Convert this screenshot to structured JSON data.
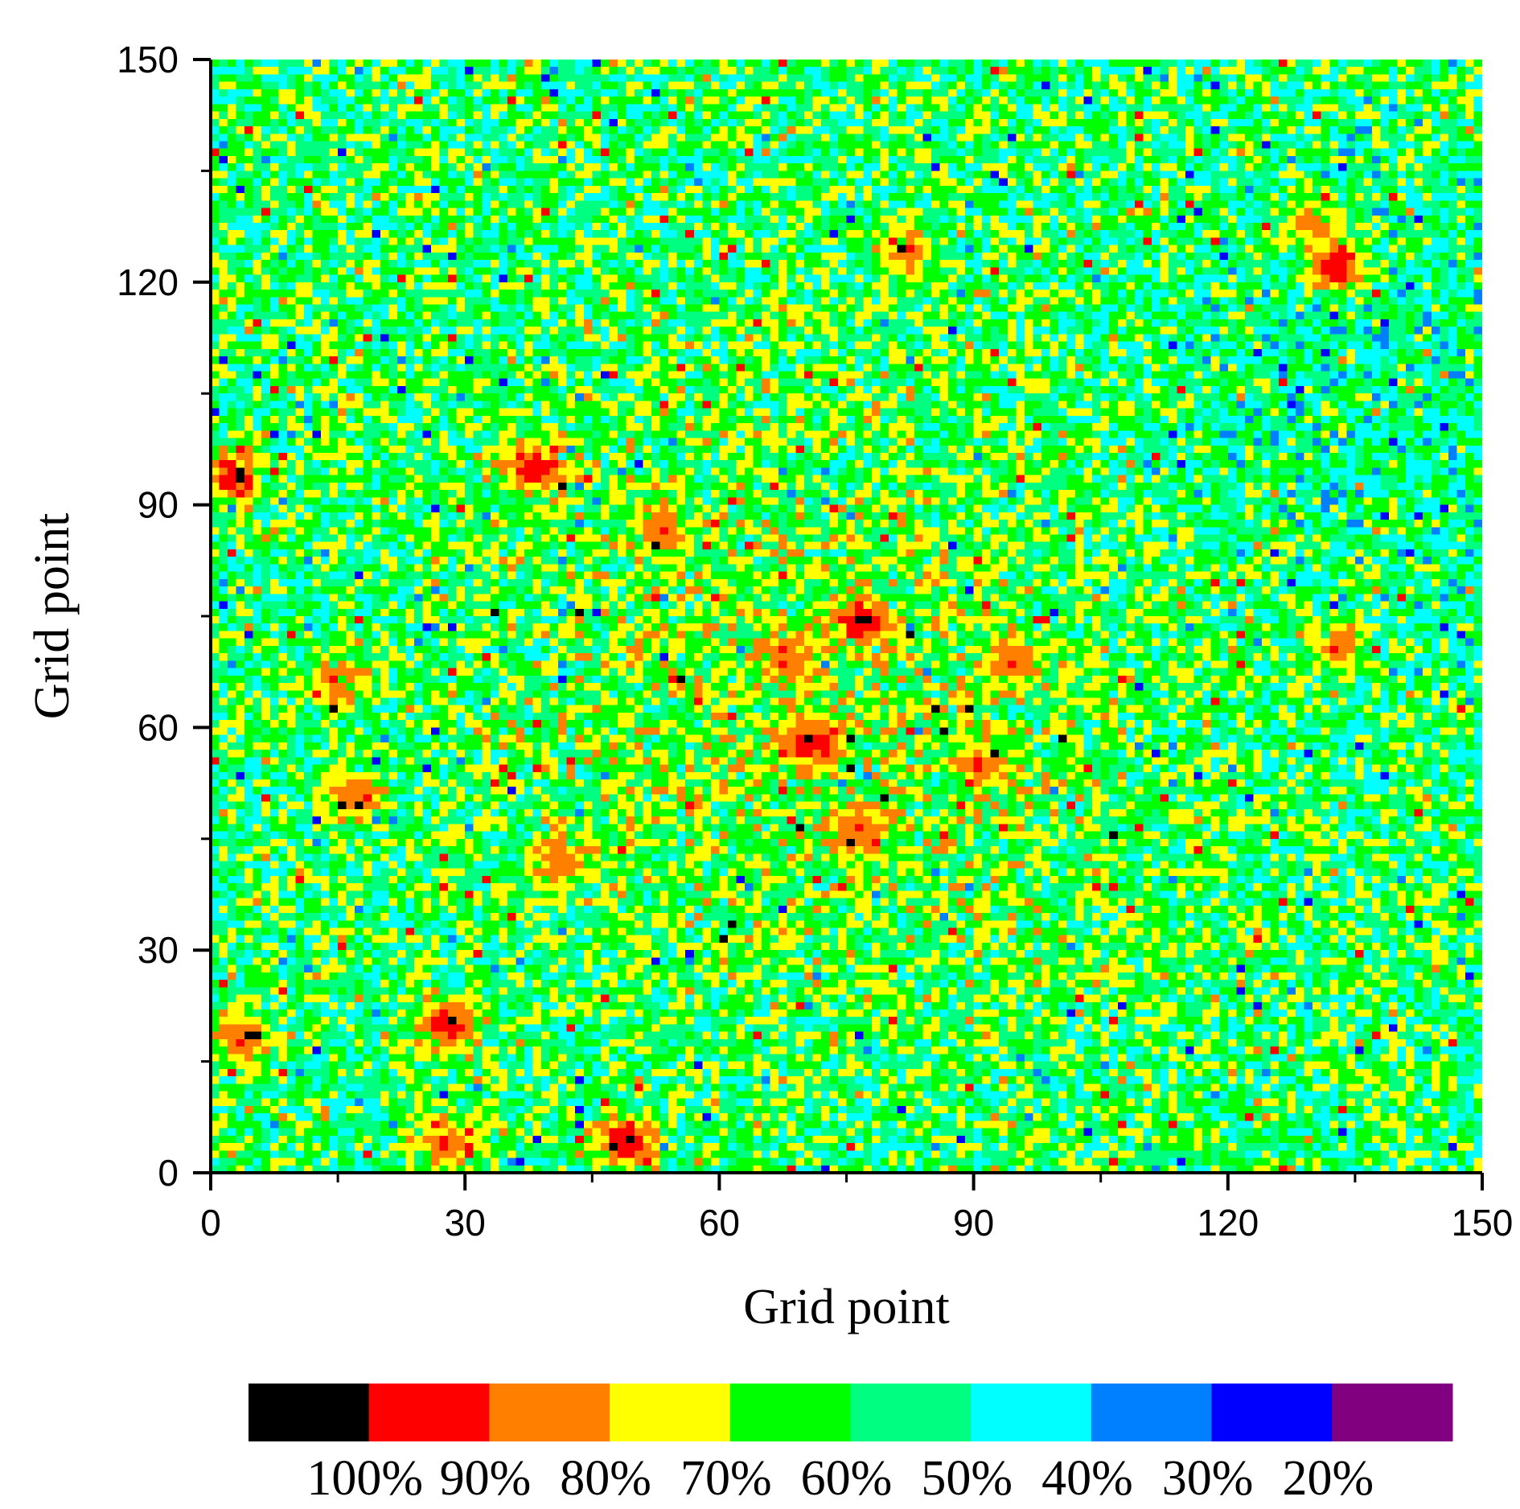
{
  "chart_data": {
    "type": "heatmap",
    "title": "",
    "xlabel": "Grid point",
    "ylabel": "Grid point",
    "xlim": [
      0,
      150
    ],
    "ylim": [
      0,
      150
    ],
    "grid_size": 150,
    "x_ticks": [
      "0",
      "30",
      "60",
      "90",
      "120",
      "150"
    ],
    "y_ticks": [
      "0",
      "30",
      "60",
      "90",
      "120",
      "150"
    ],
    "grid": false,
    "colorbar": {
      "placement": "bottom",
      "colors": [
        "#000000",
        "#ff0000",
        "#ff8000",
        "#ffff00",
        "#00ff00",
        "#00ff80",
        "#00ffff",
        "#0080ff",
        "#0000ff",
        "#800080"
      ],
      "labels": [
        "100%",
        "90%",
        "80%",
        "70%",
        "60%",
        "50%",
        "40%",
        "30%",
        "20%"
      ]
    },
    "dense_regions": [
      {
        "x": 28,
        "y": 20,
        "level": "100%"
      },
      {
        "x": 77,
        "y": 74,
        "level": "100%"
      },
      {
        "x": 68,
        "y": 70,
        "level": "90%"
      },
      {
        "x": 71,
        "y": 58,
        "level": "100%"
      },
      {
        "x": 82,
        "y": 124,
        "level": "90%"
      },
      {
        "x": 130,
        "y": 128,
        "level": "90%"
      },
      {
        "x": 133,
        "y": 122,
        "level": "100%"
      },
      {
        "x": 38,
        "y": 95,
        "level": "100%"
      },
      {
        "x": 15,
        "y": 66,
        "level": "90%"
      },
      {
        "x": 17,
        "y": 51,
        "level": "90%"
      },
      {
        "x": 41,
        "y": 42,
        "level": "90%"
      },
      {
        "x": 91,
        "y": 55,
        "level": "90%"
      },
      {
        "x": 95,
        "y": 69,
        "level": "90%"
      },
      {
        "x": 3,
        "y": 94,
        "level": "100%"
      },
      {
        "x": 53,
        "y": 87,
        "level": "90%"
      },
      {
        "x": 77,
        "y": 46,
        "level": "90%"
      },
      {
        "x": 133,
        "y": 71,
        "level": "90%"
      },
      {
        "x": 4,
        "y": 18,
        "level": "90%"
      },
      {
        "x": 49,
        "y": 4,
        "level": "100%"
      },
      {
        "x": 28,
        "y": 4,
        "level": "90%"
      }
    ]
  }
}
